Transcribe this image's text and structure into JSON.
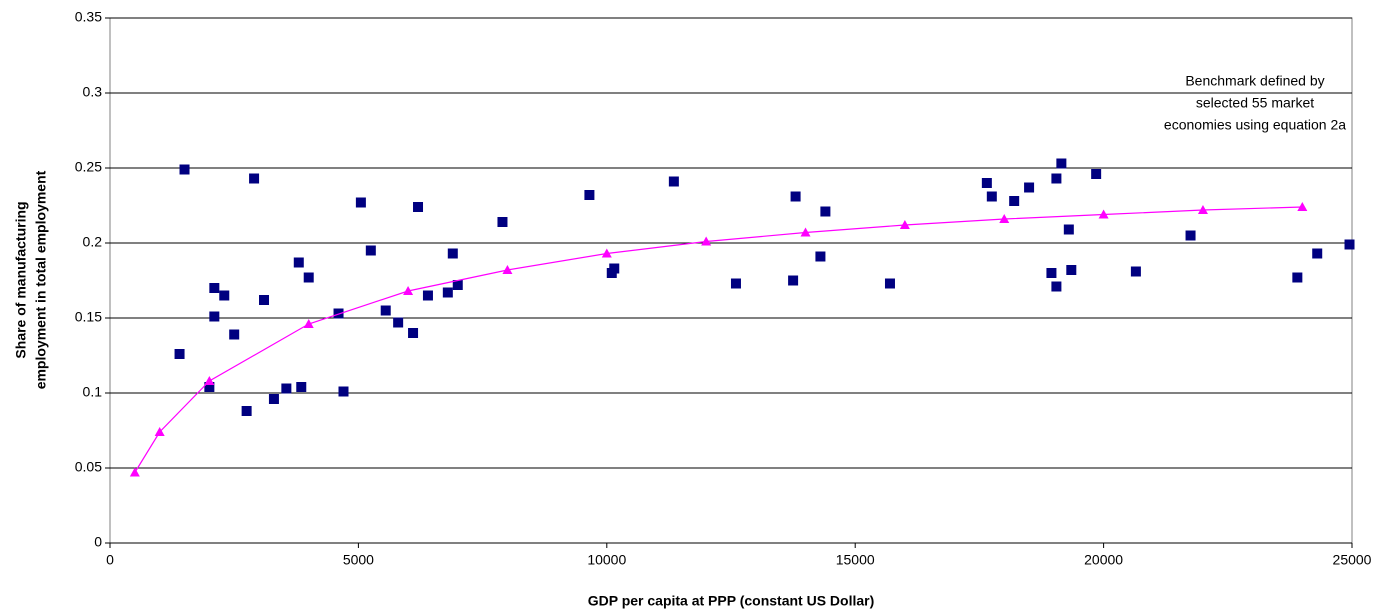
{
  "chart_data": {
    "type": "scatter",
    "xlabel": "GDP per capita at PPP (constant US Dollar)",
    "ylabel": [
      "Share of manufacturing",
      "employment in total employment"
    ],
    "annotation": [
      "Benchmark defined by",
      "selected 55 market",
      "economies using equation 2a"
    ],
    "xlim": [
      0,
      25000
    ],
    "xticks": [
      0,
      5000,
      10000,
      15000,
      20000,
      25000
    ],
    "ylim": [
      0,
      0.35
    ],
    "yticks": [
      0,
      0.05,
      0.1,
      0.15,
      0.2,
      0.25,
      0.3,
      0.35
    ],
    "grid": true,
    "series": [
      {
        "type": "scatter",
        "color": "#000080",
        "x": [
          1400,
          1500,
          2000,
          2100,
          2100,
          2300,
          2500,
          2750,
          2900,
          3100,
          3300,
          3550,
          3800,
          3850,
          4000,
          4600,
          4700,
          5050,
          5250,
          5550,
          5800,
          6100,
          6200,
          6400,
          6800,
          6900,
          7000,
          7900,
          9650,
          10100,
          10150,
          11350,
          12600,
          13750,
          13800,
          14300,
          14400,
          15700,
          17650,
          17750,
          18200,
          18500,
          18950,
          19050,
          19050,
          19150,
          19300,
          19350,
          19850,
          20650,
          21750,
          23900,
          24300,
          24950
        ],
        "values": [
          0.126,
          0.249,
          0.104,
          0.17,
          0.151,
          0.165,
          0.139,
          0.088,
          0.243,
          0.162,
          0.096,
          0.103,
          0.187,
          0.104,
          0.177,
          0.153,
          0.101,
          0.227,
          0.195,
          0.155,
          0.147,
          0.14,
          0.224,
          0.165,
          0.167,
          0.193,
          0.172,
          0.214,
          0.232,
          0.18,
          0.183,
          0.241,
          0.173,
          0.175,
          0.231,
          0.191,
          0.221,
          0.173,
          0.24,
          0.231,
          0.228,
          0.237,
          0.18,
          0.171,
          0.243,
          0.253,
          0.209,
          0.182,
          0.246,
          0.181,
          0.205,
          0.177,
          0.193,
          0.199
        ]
      },
      {
        "type": "line",
        "color": "#ff00ff",
        "x": [
          500,
          1000,
          2000,
          4000,
          6000,
          8000,
          10000,
          12000,
          14000,
          16000,
          18000,
          20000,
          22000,
          24000
        ],
        "values": [
          0.047,
          0.074,
          0.108,
          0.146,
          0.168,
          0.182,
          0.193,
          0.201,
          0.207,
          0.212,
          0.216,
          0.219,
          0.222,
          0.224
        ]
      }
    ]
  }
}
